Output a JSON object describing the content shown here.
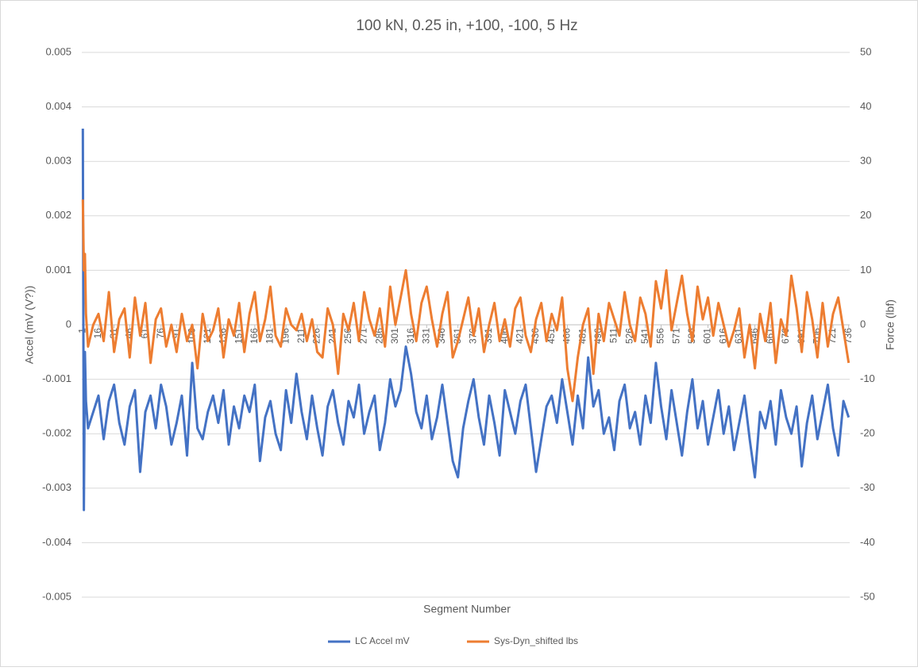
{
  "chart_data": {
    "type": "line",
    "title": "100 kN, 0.25 in, +100, -100, 5  Hz",
    "x_label": "Segment Number",
    "y_label": "Accel (mV (V?))",
    "y2_label": "Force (lbf)",
    "legend": "bottom",
    "grid": true,
    "xlim": [
      0,
      737
    ],
    "xticks": [
      1,
      16,
      31,
      46,
      61,
      76,
      91,
      106,
      121,
      136,
      151,
      166,
      181,
      196,
      211,
      226,
      241,
      256,
      271,
      286,
      301,
      316,
      331,
      346,
      361,
      376,
      391,
      406,
      421,
      436,
      451,
      466,
      481,
      496,
      511,
      526,
      541,
      556,
      571,
      586,
      601,
      616,
      631,
      646,
      661,
      676,
      691,
      706,
      721,
      736
    ],
    "ylim": [
      -0.005,
      0.005
    ],
    "yticks": [
      -0.005,
      -0.004,
      -0.003,
      -0.002,
      -0.001,
      0,
      0.001,
      0.002,
      0.003,
      0.004,
      0.005
    ],
    "y2lim": [
      -50,
      50
    ],
    "y2ticks": [
      -50,
      -40,
      -30,
      -20,
      -10,
      0,
      10,
      20,
      30,
      40,
      50
    ],
    "x": [
      1,
      2,
      3,
      4,
      6,
      11,
      16,
      21,
      26,
      31,
      36,
      41,
      46,
      51,
      56,
      61,
      66,
      71,
      76,
      81,
      86,
      91,
      96,
      101,
      106,
      111,
      116,
      121,
      126,
      131,
      136,
      141,
      146,
      151,
      156,
      161,
      166,
      171,
      176,
      181,
      186,
      191,
      196,
      201,
      206,
      211,
      216,
      221,
      226,
      231,
      236,
      241,
      246,
      251,
      256,
      261,
      266,
      271,
      276,
      281,
      286,
      291,
      296,
      301,
      306,
      311,
      316,
      321,
      326,
      331,
      336,
      341,
      346,
      351,
      356,
      361,
      366,
      371,
      376,
      381,
      386,
      391,
      396,
      401,
      406,
      411,
      416,
      421,
      426,
      431,
      436,
      441,
      446,
      451,
      456,
      461,
      466,
      471,
      476,
      481,
      486,
      491,
      496,
      501,
      506,
      511,
      516,
      521,
      526,
      531,
      536,
      541,
      546,
      551,
      556,
      561,
      566,
      571,
      576,
      581,
      586,
      591,
      596,
      601,
      606,
      611,
      616,
      621,
      626,
      631,
      636,
      641,
      646,
      651,
      656,
      661,
      666,
      671,
      676,
      681,
      686,
      691,
      696,
      701,
      706,
      711,
      716,
      721,
      726,
      731,
      736
    ],
    "series": [
      {
        "name": "LC Accel mV",
        "color": "#4472c4",
        "values": [
          0.0036,
          -0.0034,
          -0.0005,
          -0.0014,
          -0.0019,
          -0.0016,
          -0.0013,
          -0.0021,
          -0.0014,
          -0.0011,
          -0.0018,
          -0.0022,
          -0.0015,
          -0.0012,
          -0.0027,
          -0.0016,
          -0.0013,
          -0.0019,
          -0.0011,
          -0.0015,
          -0.0022,
          -0.0018,
          -0.0013,
          -0.0024,
          -0.0007,
          -0.0019,
          -0.0021,
          -0.0016,
          -0.0013,
          -0.0018,
          -0.0012,
          -0.0022,
          -0.0015,
          -0.0019,
          -0.0013,
          -0.0016,
          -0.0011,
          -0.0025,
          -0.0017,
          -0.0014,
          -0.002,
          -0.0023,
          -0.0012,
          -0.0018,
          -0.0009,
          -0.0016,
          -0.0021,
          -0.0013,
          -0.0019,
          -0.0024,
          -0.0015,
          -0.0012,
          -0.0018,
          -0.0022,
          -0.0014,
          -0.0017,
          -0.0011,
          -0.002,
          -0.0016,
          -0.0013,
          -0.0023,
          -0.0018,
          -0.001,
          -0.0015,
          -0.0012,
          -0.0004,
          -0.0009,
          -0.0016,
          -0.0019,
          -0.0013,
          -0.0021,
          -0.0017,
          -0.0011,
          -0.0018,
          -0.0025,
          -0.0028,
          -0.0019,
          -0.0014,
          -0.001,
          -0.0017,
          -0.0022,
          -0.0013,
          -0.0018,
          -0.0024,
          -0.0012,
          -0.0016,
          -0.002,
          -0.0014,
          -0.0011,
          -0.0019,
          -0.0027,
          -0.0021,
          -0.0015,
          -0.0013,
          -0.0018,
          -0.001,
          -0.0016,
          -0.0022,
          -0.0013,
          -0.0019,
          -0.0006,
          -0.0015,
          -0.0012,
          -0.002,
          -0.0017,
          -0.0023,
          -0.0014,
          -0.0011,
          -0.0019,
          -0.0016,
          -0.0022,
          -0.0013,
          -0.0018,
          -0.0007,
          -0.0015,
          -0.0021,
          -0.0012,
          -0.0018,
          -0.0024,
          -0.0016,
          -0.001,
          -0.0019,
          -0.0014,
          -0.0022,
          -0.0017,
          -0.0012,
          -0.002,
          -0.0015,
          -0.0023,
          -0.0018,
          -0.0013,
          -0.0021,
          -0.0028,
          -0.0016,
          -0.0019,
          -0.0014,
          -0.0022,
          -0.0012,
          -0.0017,
          -0.002,
          -0.0015,
          -0.0026,
          -0.0018,
          -0.0013,
          -0.0021,
          -0.0016,
          -0.0011,
          -0.0019,
          -0.0024,
          -0.0014,
          -0.0017
        ]
      },
      {
        "name": "Sys-Dyn_shifted lbs",
        "color": "#ed7d31",
        "axis": "y2",
        "values": [
          23,
          10,
          13,
          2,
          -4,
          0,
          2,
          -3,
          6,
          -5,
          1,
          3,
          -6,
          5,
          -2,
          4,
          -7,
          1,
          3,
          -4,
          0,
          -5,
          2,
          -3,
          0,
          -8,
          2,
          -3,
          -1,
          3,
          -6,
          1,
          -2,
          4,
          -5,
          2,
          6,
          -3,
          1,
          7,
          -2,
          -4,
          3,
          0,
          -1,
          2,
          -3,
          1,
          -5,
          -6,
          3,
          0,
          -9,
          2,
          -1,
          4,
          -3,
          6,
          1,
          -2,
          3,
          -4,
          7,
          0,
          5,
          10,
          2,
          -3,
          4,
          7,
          1,
          -4,
          2,
          6,
          -6,
          -3,
          1,
          5,
          -2,
          3,
          -5,
          0,
          4,
          -3,
          1,
          -4,
          3,
          5,
          -2,
          -5,
          1,
          4,
          -3,
          2,
          -1,
          5,
          -8,
          -14,
          -6,
          0,
          3,
          -9,
          2,
          -3,
          4,
          1,
          -2,
          6,
          0,
          -3,
          5,
          2,
          -4,
          8,
          3,
          10,
          -1,
          4,
          9,
          2,
          -3,
          7,
          1,
          5,
          -2,
          4,
          0,
          -4,
          -1,
          3,
          -6,
          0,
          -8,
          2,
          -3,
          4,
          -7,
          1,
          -2,
          9,
          3,
          -5,
          6,
          1,
          -6,
          4,
          -4,
          2,
          5,
          -1,
          -7
        ]
      }
    ]
  }
}
